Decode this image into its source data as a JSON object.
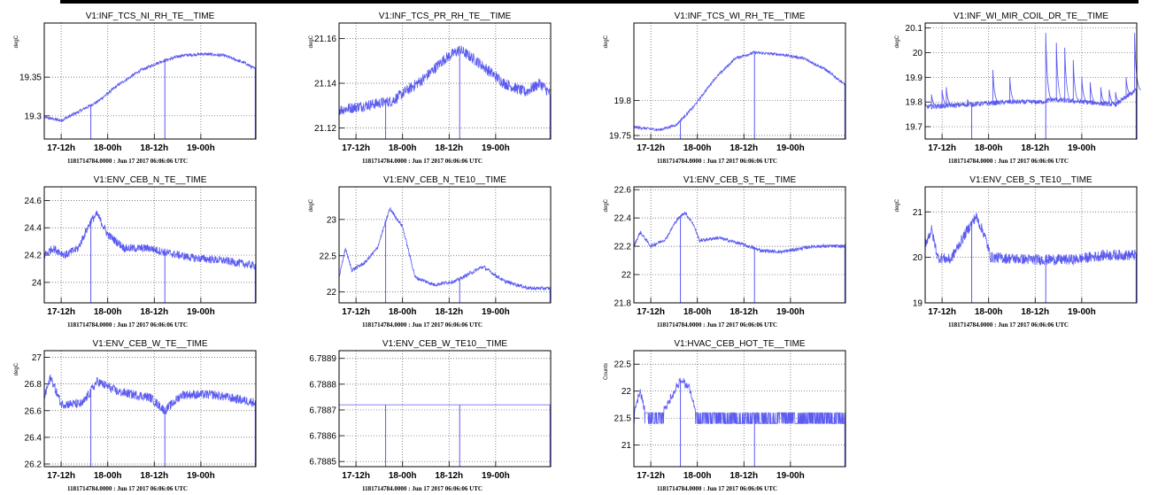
{
  "colors": {
    "trace": "#5a5af0",
    "frame": "#000000",
    "grid": "#555555",
    "background": "#ffffff"
  },
  "x_tick_labels": [
    "17-12h",
    "18-00h",
    "18-12h",
    "19-00h"
  ],
  "timestamp": "1181714784.0000 : Jun 17 2017 06:06:06 UTC",
  "chart_data": [
    {
      "type": "line",
      "title": "V1:INF_TCS_NI_RH_TE__TIME",
      "ylabel": "degC",
      "ylim": [
        19.27,
        19.42
      ],
      "yticks": [
        19.3,
        19.35
      ],
      "ytick_labels": [
        "19.3",
        "19.35"
      ],
      "noise": 0.002,
      "markers": [
        0.22,
        0.57
      ],
      "sparse": [],
      "shape": [
        [
          0,
          19.298
        ],
        [
          0.08,
          19.294
        ],
        [
          0.16,
          19.305
        ],
        [
          0.25,
          19.318
        ],
        [
          0.35,
          19.34
        ],
        [
          0.45,
          19.358
        ],
        [
          0.55,
          19.37
        ],
        [
          0.65,
          19.378
        ],
        [
          0.75,
          19.38
        ],
        [
          0.85,
          19.378
        ],
        [
          0.95,
          19.368
        ],
        [
          1,
          19.36
        ]
      ]
    },
    {
      "type": "line",
      "title": "V1:INF_TCS_PR_RH_TE__TIME",
      "ylabel": "degC",
      "ylim": [
        21.115,
        21.167
      ],
      "yticks": [
        21.12,
        21.14,
        21.16
      ],
      "ytick_labels": [
        "21.12",
        "21.14",
        "21.16"
      ],
      "noise": 0.0025,
      "markers": [
        0.22,
        0.57
      ],
      "sparse": [],
      "shape": [
        [
          0,
          21.128
        ],
        [
          0.12,
          21.13
        ],
        [
          0.25,
          21.132
        ],
        [
          0.4,
          21.142
        ],
        [
          0.5,
          21.151
        ],
        [
          0.57,
          21.155
        ],
        [
          0.65,
          21.15
        ],
        [
          0.78,
          21.14
        ],
        [
          0.88,
          21.136
        ],
        [
          0.95,
          21.14
        ],
        [
          1,
          21.135
        ]
      ]
    },
    {
      "type": "line",
      "title": "V1:INF_TCS_WI_RH_TE__TIME",
      "ylabel": "degC",
      "ylim": [
        19.745,
        19.91
      ],
      "yticks": [
        19.75,
        19.8
      ],
      "ytick_labels": [
        "19.75",
        "19.8"
      ],
      "noise": 0.002,
      "markers": [
        0.22,
        0.57
      ],
      "sparse": [],
      "shape": [
        [
          0,
          19.762
        ],
        [
          0.12,
          19.758
        ],
        [
          0.2,
          19.765
        ],
        [
          0.28,
          19.79
        ],
        [
          0.38,
          19.83
        ],
        [
          0.48,
          19.86
        ],
        [
          0.57,
          19.868
        ],
        [
          0.7,
          19.865
        ],
        [
          0.8,
          19.86
        ],
        [
          0.9,
          19.845
        ],
        [
          1,
          19.822
        ]
      ]
    },
    {
      "type": "line",
      "title": "V1:INF_WI_MIR_COIL_DR_TE__TIME",
      "ylabel": "degC",
      "ylim": [
        19.65,
        20.12
      ],
      "yticks": [
        19.7,
        19.8,
        19.9,
        20.0,
        20.1
      ],
      "ytick_labels": [
        "19.7",
        "19.8",
        "19.9",
        "20",
        "20.1"
      ],
      "noise": 0.01,
      "markers": [
        0.22,
        0.57
      ],
      "sparse": [],
      "shape": [
        [
          0,
          19.78
        ],
        [
          0.2,
          19.79
        ],
        [
          0.3,
          19.795
        ],
        [
          0.4,
          19.8
        ],
        [
          0.55,
          19.8
        ],
        [
          0.6,
          19.81
        ],
        [
          0.75,
          19.8
        ],
        [
          0.9,
          19.79
        ],
        [
          1,
          19.85
        ]
      ],
      "spikes": [
        [
          0.03,
          19.83
        ],
        [
          0.08,
          19.85
        ],
        [
          0.1,
          19.86
        ],
        [
          0.2,
          19.81
        ],
        [
          0.32,
          19.93
        ],
        [
          0.4,
          19.9
        ],
        [
          0.57,
          20.08
        ],
        [
          0.62,
          20.04
        ],
        [
          0.66,
          20.02
        ],
        [
          0.7,
          19.97
        ],
        [
          0.74,
          19.9
        ],
        [
          0.78,
          19.88
        ],
        [
          0.83,
          19.86
        ],
        [
          0.87,
          19.85
        ],
        [
          0.9,
          19.84
        ],
        [
          0.95,
          19.9
        ],
        [
          0.99,
          20.08
        ]
      ]
    },
    {
      "type": "line",
      "title": "V1:ENV_CEB_N_TE__TIME",
      "ylabel": "",
      "ylim": [
        23.85,
        24.7
      ],
      "yticks": [
        24.0,
        24.2,
        24.4,
        24.6
      ],
      "ytick_labels": [
        "24",
        "24.2",
        "24.4",
        "24.6"
      ],
      "noise": 0.03,
      "markers": [
        0.22,
        0.57
      ],
      "sparse": [],
      "shape": [
        [
          0,
          24.2
        ],
        [
          0.04,
          24.25
        ],
        [
          0.1,
          24.2
        ],
        [
          0.16,
          24.25
        ],
        [
          0.22,
          24.45
        ],
        [
          0.25,
          24.5
        ],
        [
          0.3,
          24.35
        ],
        [
          0.38,
          24.25
        ],
        [
          0.5,
          24.25
        ],
        [
          0.57,
          24.22
        ],
        [
          0.7,
          24.18
        ],
        [
          0.85,
          24.16
        ],
        [
          1,
          24.12
        ]
      ]
    },
    {
      "type": "line",
      "title": "V1:ENV_CEB_N_TE10__TIME",
      "ylabel": "degC",
      "ylim": [
        21.85,
        23.45
      ],
      "yticks": [
        22.0,
        22.5,
        23.0
      ],
      "ytick_labels": [
        "22",
        "22.5",
        "23"
      ],
      "noise": 0.025,
      "markers": [
        0.22,
        0.57
      ],
      "sparse": [],
      "shape": [
        [
          0,
          22.2
        ],
        [
          0.03,
          22.6
        ],
        [
          0.06,
          22.3
        ],
        [
          0.12,
          22.4
        ],
        [
          0.18,
          22.6
        ],
        [
          0.24,
          23.15
        ],
        [
          0.3,
          22.9
        ],
        [
          0.36,
          22.2
        ],
        [
          0.45,
          22.1
        ],
        [
          0.55,
          22.15
        ],
        [
          0.68,
          22.35
        ],
        [
          0.78,
          22.15
        ],
        [
          0.9,
          22.05
        ],
        [
          1,
          22.05
        ]
      ]
    },
    {
      "type": "line",
      "title": "V1:ENV_CEB_S_TE__TIME",
      "ylabel": "degC",
      "ylim": [
        21.8,
        22.62
      ],
      "yticks": [
        21.8,
        22.0,
        22.2,
        22.4,
        22.6
      ],
      "ytick_labels": [
        "21.8",
        "22",
        "22.2",
        "22.4",
        "22.6"
      ],
      "noise": 0.012,
      "markers": [
        0.22,
        0.57
      ],
      "sparse": [],
      "shape": [
        [
          0,
          22.2
        ],
        [
          0.03,
          22.3
        ],
        [
          0.08,
          22.2
        ],
        [
          0.15,
          22.25
        ],
        [
          0.2,
          22.38
        ],
        [
          0.24,
          22.44
        ],
        [
          0.28,
          22.36
        ],
        [
          0.31,
          22.24
        ],
        [
          0.4,
          22.26
        ],
        [
          0.5,
          22.22
        ],
        [
          0.6,
          22.17
        ],
        [
          0.7,
          22.16
        ],
        [
          0.85,
          22.2
        ],
        [
          1,
          22.2
        ]
      ]
    },
    {
      "type": "line",
      "title": "V1:ENV_CEB_S_TE10__TIME",
      "ylabel": "degC",
      "ylim": [
        19.0,
        21.55
      ],
      "yticks": [
        19.0,
        20.0,
        21.0
      ],
      "ytick_labels": [
        "19",
        "20",
        "21"
      ],
      "noise": 0.12,
      "markers": [
        0.22,
        0.57
      ],
      "sparse": [],
      "shape": [
        [
          0,
          20.3
        ],
        [
          0.03,
          20.6
        ],
        [
          0.06,
          20.0
        ],
        [
          0.12,
          19.95
        ],
        [
          0.2,
          20.6
        ],
        [
          0.24,
          20.9
        ],
        [
          0.28,
          20.5
        ],
        [
          0.31,
          20.0
        ],
        [
          0.5,
          19.95
        ],
        [
          0.7,
          19.95
        ],
        [
          0.85,
          20.05
        ],
        [
          1,
          20.05
        ]
      ]
    },
    {
      "type": "line",
      "title": "V1:ENV_CEB_W_TE__TIME",
      "ylabel": "degC",
      "ylim": [
        26.18,
        27.05
      ],
      "yticks": [
        26.2,
        26.4,
        26.6,
        26.8,
        27.0
      ],
      "ytick_labels": [
        "26.2",
        "26.4",
        "26.6",
        "26.8",
        "27"
      ],
      "noise": 0.035,
      "markers": [
        0.22,
        0.57
      ],
      "sparse": [],
      "shape": [
        [
          0,
          26.7
        ],
        [
          0.03,
          26.85
        ],
        [
          0.08,
          26.65
        ],
        [
          0.18,
          26.65
        ],
        [
          0.25,
          26.82
        ],
        [
          0.35,
          26.74
        ],
        [
          0.5,
          26.7
        ],
        [
          0.57,
          26.6
        ],
        [
          0.65,
          26.72
        ],
        [
          0.8,
          26.72
        ],
        [
          1,
          26.66
        ]
      ]
    },
    {
      "type": "line",
      "title": "V1:ENV_CEB_W_TE10__TIME",
      "ylabel": "",
      "ylim": [
        6.78848,
        6.78893
      ],
      "yticks": [
        6.7885,
        6.7886,
        6.7887,
        6.7888,
        6.7889
      ],
      "ytick_labels": [
        "6.7885",
        "6.7886",
        "6.7887",
        "6.7888",
        "6.7889"
      ],
      "noise": 0,
      "markers": [
        0.22,
        0.57
      ],
      "sparse": [],
      "shape": [
        [
          0,
          6.78872
        ],
        [
          1,
          6.78872
        ]
      ]
    },
    {
      "type": "line",
      "title": "V1:HVAC_CEB_HOT_TE__TIME",
      "ylabel": "Counts",
      "ylim": [
        20.6,
        22.75
      ],
      "yticks": [
        21.0,
        21.5,
        22.0,
        22.5
      ],
      "ytick_labels": [
        "21",
        "21.5",
        "22",
        "22.5"
      ],
      "noise": 0,
      "markers": [
        0.22,
        0.57
      ],
      "sparse": [],
      "shape": [
        [
          0,
          21.6
        ],
        [
          0.03,
          22.0
        ],
        [
          0.06,
          21.5
        ],
        [
          0.12,
          21.5
        ],
        [
          0.18,
          21.9
        ],
        [
          0.22,
          22.2
        ],
        [
          0.26,
          22.1
        ],
        [
          0.3,
          21.5
        ],
        [
          1,
          21.5
        ]
      ],
      "step": 0.1,
      "jitter": [
        21.4,
        21.6
      ]
    }
  ]
}
